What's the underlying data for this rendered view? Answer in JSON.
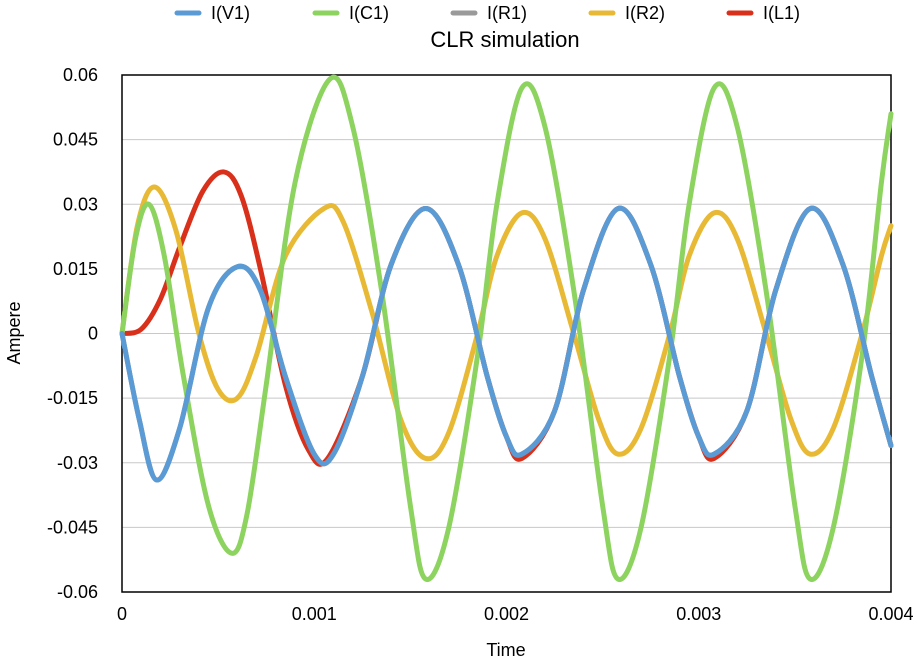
{
  "chart_data": {
    "type": "line",
    "title": "CLR simulation",
    "xlabel": "Time",
    "ylabel": "Ampere",
    "xlim": [
      0,
      0.004
    ],
    "ylim": [
      -0.06,
      0.06
    ],
    "xticks": [
      0,
      0.001,
      0.002,
      0.003,
      0.004
    ],
    "xtick_labels": [
      "0",
      "0.001",
      "0.002",
      "0.003",
      "0.004"
    ],
    "yticks": [
      0.06,
      0.045,
      0.03,
      0.015,
      0,
      -0.015,
      -0.03,
      -0.045,
      -0.06
    ],
    "ytick_labels": [
      "0.06",
      "0.045",
      "0.03",
      "0.015",
      "0",
      "-0.015",
      "-0.03",
      "-0.045",
      "-0.06"
    ],
    "grid": true,
    "legend_position": "top",
    "series": [
      {
        "name": "I(V1)",
        "color": "#5b9bd5",
        "points": [
          [
            0,
            0
          ],
          [
            9e-05,
            -0.02
          ],
          [
            0.00018,
            -0.034
          ],
          [
            0.0003,
            -0.022
          ],
          [
            0.00045,
            0.006
          ],
          [
            0.0006,
            0.0155
          ],
          [
            0.00072,
            0.01
          ],
          [
            0.00085,
            -0.01
          ],
          [
            0.001,
            -0.028
          ],
          [
            0.0011,
            -0.028
          ],
          [
            0.00125,
            -0.01
          ],
          [
            0.0014,
            0.016
          ],
          [
            0.00158,
            0.029
          ],
          [
            0.00175,
            0.016
          ],
          [
            0.0019,
            -0.01
          ],
          [
            0.002,
            -0.024
          ],
          [
            0.00208,
            -0.028
          ],
          [
            0.00225,
            -0.018
          ],
          [
            0.0024,
            0.01
          ],
          [
            0.00258,
            0.029
          ],
          [
            0.00275,
            0.016
          ],
          [
            0.0029,
            -0.01
          ],
          [
            0.003,
            -0.024
          ],
          [
            0.00308,
            -0.028
          ],
          [
            0.00325,
            -0.018
          ],
          [
            0.0034,
            0.01
          ],
          [
            0.00358,
            0.029
          ],
          [
            0.00375,
            0.016
          ],
          [
            0.0039,
            -0.01
          ],
          [
            0.004,
            -0.026
          ]
        ]
      },
      {
        "name": "I(C1)",
        "color": "#8dd35f",
        "points": [
          [
            0,
            0
          ],
          [
            7e-05,
            0.022
          ],
          [
            0.00014,
            0.03
          ],
          [
            0.00022,
            0.018
          ],
          [
            0.00032,
            -0.01
          ],
          [
            0.00045,
            -0.04
          ],
          [
            0.00057,
            -0.051
          ],
          [
            0.00065,
            -0.042
          ],
          [
            0.00075,
            -0.012
          ],
          [
            0.0009,
            0.035
          ],
          [
            0.00108,
            0.059
          ],
          [
            0.0012,
            0.048
          ],
          [
            0.00135,
            0.01
          ],
          [
            0.0015,
            -0.04
          ],
          [
            0.00158,
            -0.057
          ],
          [
            0.0017,
            -0.045
          ],
          [
            0.00185,
            -0.005
          ],
          [
            0.00195,
            0.03
          ],
          [
            0.00208,
            0.057
          ],
          [
            0.0022,
            0.048
          ],
          [
            0.00235,
            0.01
          ],
          [
            0.0025,
            -0.04
          ],
          [
            0.00258,
            -0.057
          ],
          [
            0.0027,
            -0.045
          ],
          [
            0.00285,
            -0.005
          ],
          [
            0.00295,
            0.03
          ],
          [
            0.00308,
            0.057
          ],
          [
            0.0032,
            0.048
          ],
          [
            0.00335,
            0.01
          ],
          [
            0.0035,
            -0.04
          ],
          [
            0.00358,
            -0.057
          ],
          [
            0.0037,
            -0.045
          ],
          [
            0.00385,
            -0.005
          ],
          [
            0.00395,
            0.035
          ],
          [
            0.004,
            0.051
          ]
        ]
      },
      {
        "name": "I(R1)",
        "color": "#9a9a9a",
        "points": [
          [
            0,
            0
          ],
          [
            9e-05,
            -0.02
          ],
          [
            0.00018,
            -0.034
          ],
          [
            0.0003,
            -0.022
          ],
          [
            0.00045,
            0.006
          ],
          [
            0.0006,
            0.0155
          ],
          [
            0.00072,
            0.01
          ],
          [
            0.00085,
            -0.01
          ],
          [
            0.001,
            -0.028
          ],
          [
            0.0011,
            -0.028
          ],
          [
            0.00125,
            -0.01
          ],
          [
            0.0014,
            0.016
          ],
          [
            0.00158,
            0.029
          ],
          [
            0.00175,
            0.016
          ],
          [
            0.0019,
            -0.01
          ],
          [
            0.002,
            -0.024
          ],
          [
            0.00208,
            -0.028
          ],
          [
            0.00225,
            -0.018
          ],
          [
            0.0024,
            0.01
          ],
          [
            0.00258,
            0.029
          ],
          [
            0.00275,
            0.016
          ],
          [
            0.0029,
            -0.01
          ],
          [
            0.003,
            -0.024
          ],
          [
            0.00308,
            -0.028
          ],
          [
            0.00325,
            -0.018
          ],
          [
            0.0034,
            0.01
          ],
          [
            0.00358,
            0.029
          ],
          [
            0.00375,
            0.016
          ],
          [
            0.0039,
            -0.01
          ],
          [
            0.004,
            -0.026
          ]
        ]
      },
      {
        "name": "I(R2)",
        "color": "#e8b934",
        "points": [
          [
            0,
            0
          ],
          [
            8e-05,
            0.025
          ],
          [
            0.00017,
            0.034
          ],
          [
            0.00028,
            0.024
          ],
          [
            0.0004,
            0.0
          ],
          [
            0.0005,
            -0.013
          ],
          [
            0.0006,
            -0.015
          ],
          [
            0.0007,
            -0.005
          ],
          [
            0.00085,
            0.018
          ],
          [
            0.00105,
            0.029
          ],
          [
            0.00115,
            0.026
          ],
          [
            0.0013,
            0.005
          ],
          [
            0.00145,
            -0.02
          ],
          [
            0.00158,
            -0.029
          ],
          [
            0.0017,
            -0.023
          ],
          [
            0.00185,
            0.0
          ],
          [
            0.00195,
            0.018
          ],
          [
            0.00208,
            0.028
          ],
          [
            0.0022,
            0.022
          ],
          [
            0.00235,
            0.0
          ],
          [
            0.00248,
            -0.02
          ],
          [
            0.00258,
            -0.028
          ],
          [
            0.0027,
            -0.022
          ],
          [
            0.00285,
            0.0
          ],
          [
            0.00295,
            0.018
          ],
          [
            0.00308,
            0.028
          ],
          [
            0.0032,
            0.022
          ],
          [
            0.00335,
            0.0
          ],
          [
            0.00348,
            -0.02
          ],
          [
            0.00358,
            -0.028
          ],
          [
            0.0037,
            -0.022
          ],
          [
            0.00385,
            0.0
          ],
          [
            0.00395,
            0.018
          ],
          [
            0.004,
            0.025
          ]
        ]
      },
      {
        "name": "I(L1)",
        "color": "#d8301a",
        "points": [
          [
            0,
            0
          ],
          [
            0.0001,
            0.001
          ],
          [
            0.0002,
            0.008
          ],
          [
            0.0003,
            0.02
          ],
          [
            0.00042,
            0.033
          ],
          [
            0.00053,
            0.0375
          ],
          [
            0.00062,
            0.032
          ],
          [
            0.00072,
            0.015
          ],
          [
            0.00085,
            -0.012
          ],
          [
            0.00097,
            -0.027
          ],
          [
            0.00107,
            -0.029
          ],
          [
            0.00125,
            -0.01
          ],
          [
            0.0014,
            0.016
          ],
          [
            0.00158,
            0.029
          ],
          [
            0.00175,
            0.016
          ],
          [
            0.0019,
            -0.01
          ],
          [
            0.002,
            -0.024
          ],
          [
            0.00208,
            -0.029
          ],
          [
            0.00225,
            -0.018
          ],
          [
            0.0024,
            0.01
          ],
          [
            0.00258,
            0.029
          ],
          [
            0.00275,
            0.016
          ],
          [
            0.0029,
            -0.01
          ],
          [
            0.003,
            -0.024
          ],
          [
            0.00308,
            -0.029
          ],
          [
            0.00325,
            -0.018
          ],
          [
            0.0034,
            0.01
          ],
          [
            0.00358,
            0.029
          ],
          [
            0.00375,
            0.016
          ],
          [
            0.0039,
            -0.01
          ],
          [
            0.004,
            -0.026
          ]
        ]
      }
    ]
  }
}
